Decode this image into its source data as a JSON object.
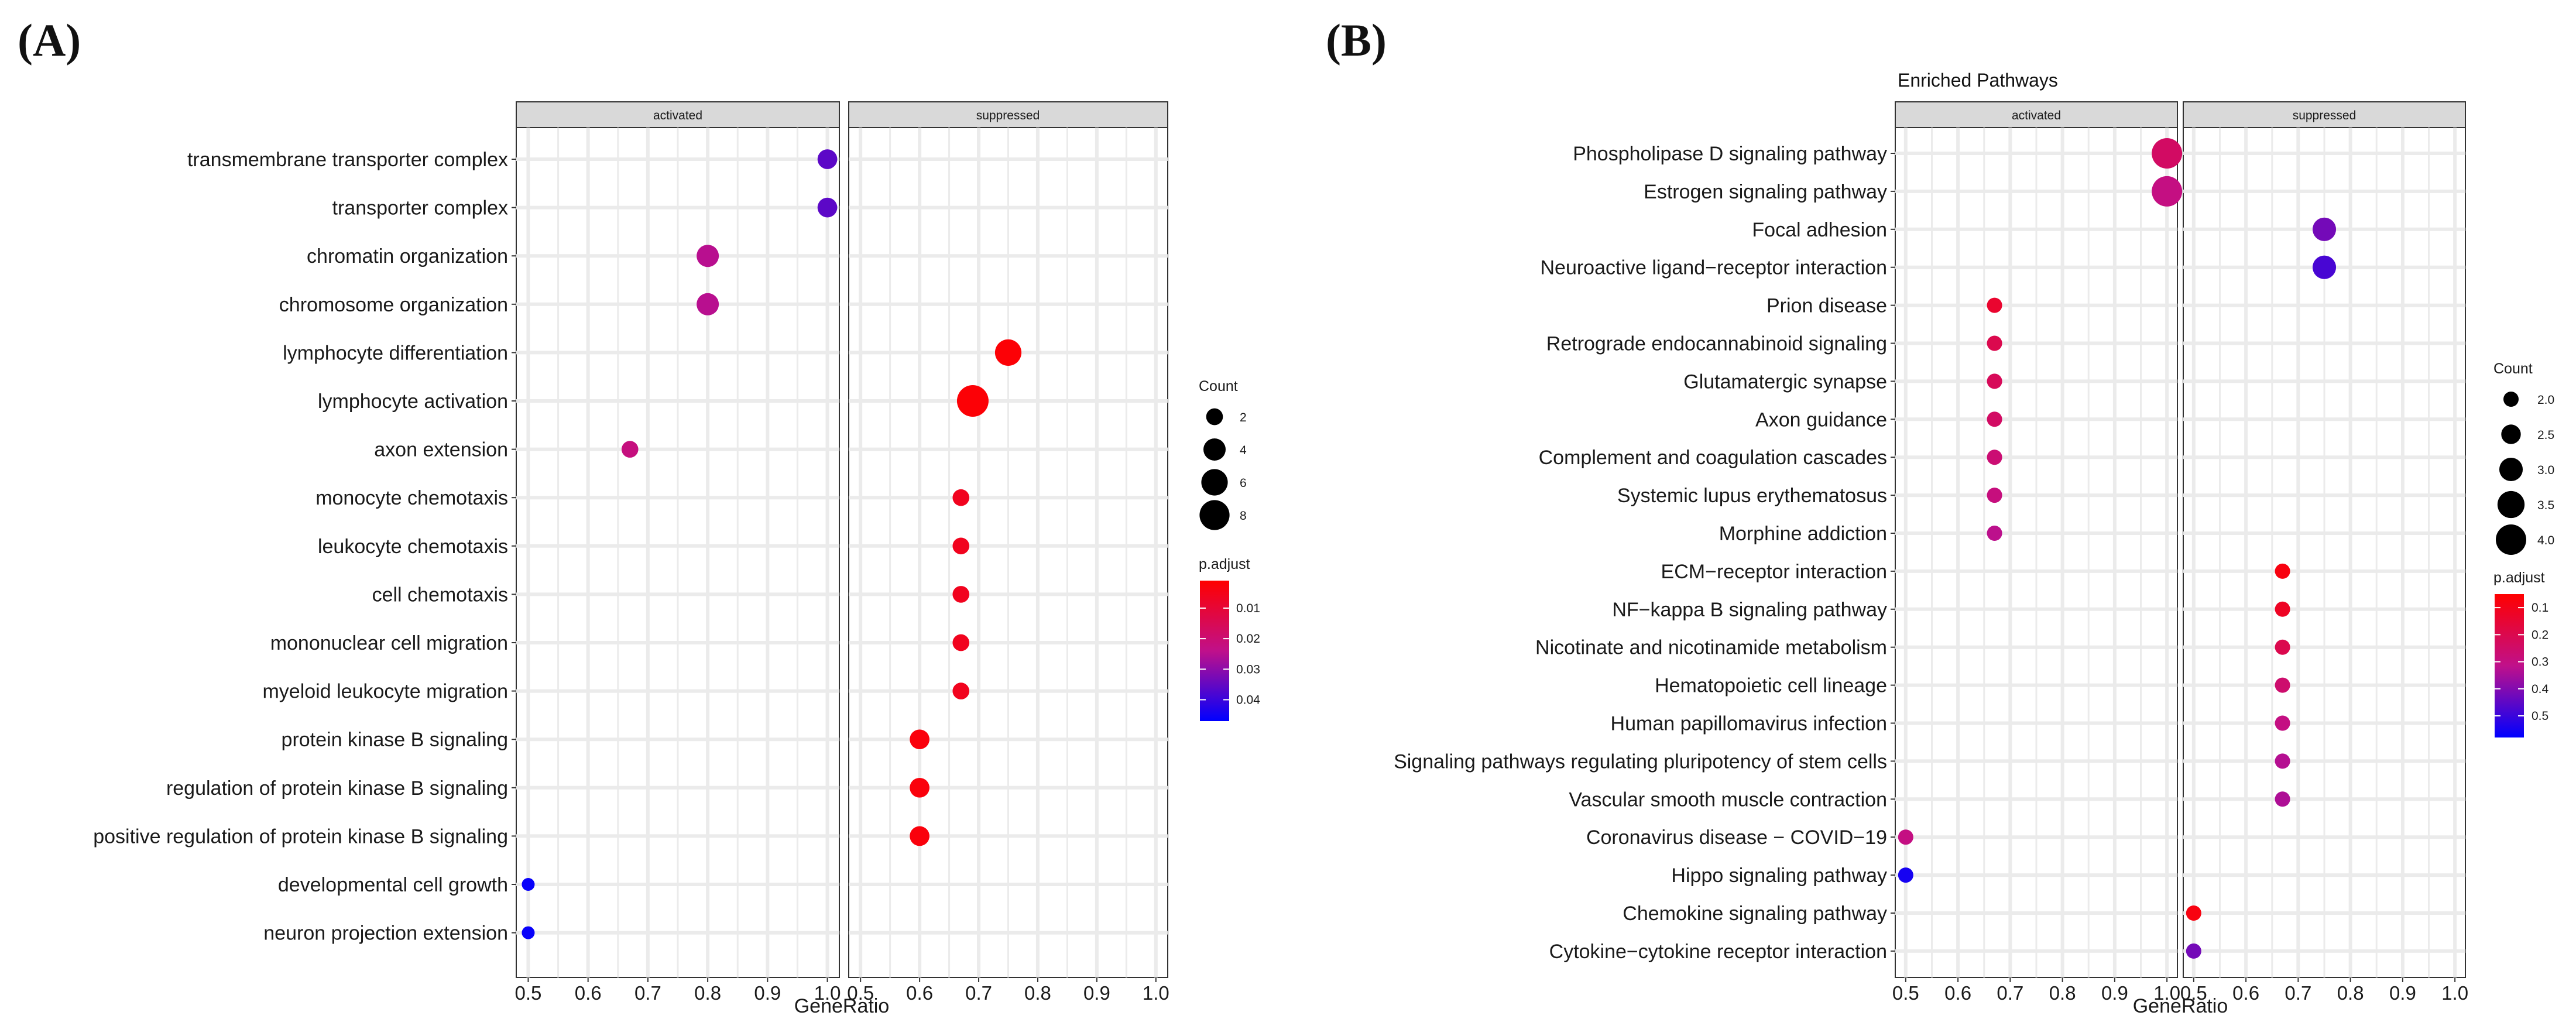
{
  "colors": {
    "low_padj": "#FF0000",
    "high_padj": "#0000FF",
    "grid": "#EBEBEB",
    "strip_fill": "#D9D9D9"
  },
  "chart_data": [
    {
      "type": "scatter",
      "panel_label": "(A)",
      "title": "",
      "xlabel": "GeneRatio",
      "ylabel": "",
      "facets": [
        "activated",
        "suppressed"
      ],
      "xlim": [
        0.48,
        1.02
      ],
      "xticks": [
        0.5,
        0.6,
        0.7,
        0.8,
        0.9,
        1.0
      ],
      "xtick_labels": [
        "0.5",
        "0.6",
        "0.7",
        "0.8",
        "0.9",
        "1.0"
      ],
      "categories": [
        "transmembrane transporter complex",
        "transporter complex",
        "chromatin organization",
        "chromosome organization",
        "lymphocyte differentiation",
        "lymphocyte activation",
        "axon extension",
        "monocyte chemotaxis",
        "leukocyte chemotaxis",
        "cell chemotaxis",
        "mononuclear cell migration",
        "myeloid leukocyte migration",
        "protein kinase B signaling",
        "regulation of protein kinase B signaling",
        "positive regulation of protein kinase B signaling",
        "developmental cell growth",
        "neuron projection extension"
      ],
      "points": [
        {
          "category": "transmembrane transporter complex",
          "facet": "activated",
          "x": 1.0,
          "count": 3,
          "p_adjust": 0.036
        },
        {
          "category": "transporter complex",
          "facet": "activated",
          "x": 1.0,
          "count": 3,
          "p_adjust": 0.036
        },
        {
          "category": "chromatin organization",
          "facet": "activated",
          "x": 0.8,
          "count": 4,
          "p_adjust": 0.025
        },
        {
          "category": "chromosome organization",
          "facet": "activated",
          "x": 0.8,
          "count": 4,
          "p_adjust": 0.025
        },
        {
          "category": "lymphocyte differentiation",
          "facet": "suppressed",
          "x": 0.75,
          "count": 6,
          "p_adjust": 0.002
        },
        {
          "category": "lymphocyte activation",
          "facet": "suppressed",
          "x": 0.69,
          "count": 9,
          "p_adjust": 0.002
        },
        {
          "category": "axon extension",
          "facet": "activated",
          "x": 0.67,
          "count": 2,
          "p_adjust": 0.022
        },
        {
          "category": "monocyte chemotaxis",
          "facet": "suppressed",
          "x": 0.67,
          "count": 2,
          "p_adjust": 0.006
        },
        {
          "category": "leukocyte chemotaxis",
          "facet": "suppressed",
          "x": 0.67,
          "count": 2,
          "p_adjust": 0.006
        },
        {
          "category": "cell chemotaxis",
          "facet": "suppressed",
          "x": 0.67,
          "count": 2,
          "p_adjust": 0.006
        },
        {
          "category": "mononuclear cell migration",
          "facet": "suppressed",
          "x": 0.67,
          "count": 2,
          "p_adjust": 0.006
        },
        {
          "category": "myeloid leukocyte migration",
          "facet": "suppressed",
          "x": 0.67,
          "count": 2,
          "p_adjust": 0.006
        },
        {
          "category": "protein kinase B signaling",
          "facet": "suppressed",
          "x": 0.6,
          "count": 3,
          "p_adjust": 0.003
        },
        {
          "category": "regulation of protein kinase B signaling",
          "facet": "suppressed",
          "x": 0.6,
          "count": 3,
          "p_adjust": 0.003
        },
        {
          "category": "positive regulation of protein kinase B signaling",
          "facet": "suppressed",
          "x": 0.6,
          "count": 3,
          "p_adjust": 0.003
        },
        {
          "category": "developmental cell growth",
          "facet": "activated",
          "x": 0.5,
          "count": 1,
          "p_adjust": 0.046
        },
        {
          "category": "neuron projection extension",
          "facet": "activated",
          "x": 0.5,
          "count": 1,
          "p_adjust": 0.046
        }
      ],
      "size_legend": {
        "title": "Count",
        "values": [
          2,
          4,
          6,
          8
        ],
        "labels": [
          "2",
          "4",
          "6",
          "8"
        ],
        "range": [
          1,
          9
        ]
      },
      "color_legend": {
        "title": "p.adjust",
        "ticks": [
          0.01,
          0.02,
          0.03,
          0.04
        ],
        "tick_labels": [
          "0.01",
          "0.02",
          "0.03",
          "0.04"
        ],
        "range": [
          0.001,
          0.047
        ]
      }
    },
    {
      "type": "scatter",
      "panel_label": "(B)",
      "title": "Enriched Pathways",
      "xlabel": "GeneRatio",
      "ylabel": "",
      "facets": [
        "activated",
        "suppressed"
      ],
      "xlim": [
        0.48,
        1.02
      ],
      "xticks": [
        0.5,
        0.6,
        0.7,
        0.8,
        0.9,
        1.0
      ],
      "xtick_labels": [
        "0.5",
        "0.6",
        "0.7",
        "0.8",
        "0.9",
        "1.0"
      ],
      "categories": [
        "Phospholipase D signaling pathway",
        "Estrogen signaling pathway",
        "Focal adhesion",
        "Neuroactive ligand−receptor interaction",
        "Prion disease",
        "Retrograde endocannabinoid signaling",
        "Glutamatergic synapse",
        "Axon guidance",
        "Complement and coagulation cascades",
        "Systemic lupus erythematosus",
        "Morphine addiction",
        "ECM−receptor interaction",
        "NF−kappa B signaling pathway",
        "Nicotinate and nicotinamide metabolism",
        "Hematopoietic cell lineage",
        "Human papillomavirus infection",
        "Signaling pathways regulating pluripotency of stem cells",
        "Vascular smooth muscle contraction",
        "Coronavirus disease − COVID−19",
        "Hippo signaling pathway",
        "Chemokine signaling pathway",
        "Cytokine−cytokine receptor interaction"
      ],
      "points": [
        {
          "category": "Phospholipase D signaling pathway",
          "facet": "activated",
          "x": 1.0,
          "count": 4,
          "p_adjust": 0.24
        },
        {
          "category": "Estrogen signaling pathway",
          "facet": "activated",
          "x": 1.0,
          "count": 4,
          "p_adjust": 0.3
        },
        {
          "category": "Focal adhesion",
          "facet": "suppressed",
          "x": 0.75,
          "count": 3,
          "p_adjust": 0.42
        },
        {
          "category": "Neuroactive ligand−receptor interaction",
          "facet": "suppressed",
          "x": 0.75,
          "count": 3,
          "p_adjust": 0.48
        },
        {
          "category": "Prion disease",
          "facet": "activated",
          "x": 0.67,
          "count": 2,
          "p_adjust": 0.14
        },
        {
          "category": "Retrograde endocannabinoid signaling",
          "facet": "activated",
          "x": 0.67,
          "count": 2,
          "p_adjust": 0.2
        },
        {
          "category": "Glutamatergic synapse",
          "facet": "activated",
          "x": 0.67,
          "count": 2,
          "p_adjust": 0.22
        },
        {
          "category": "Axon guidance",
          "facet": "activated",
          "x": 0.67,
          "count": 2,
          "p_adjust": 0.24
        },
        {
          "category": "Complement and coagulation cascades",
          "facet": "activated",
          "x": 0.67,
          "count": 2,
          "p_adjust": 0.27
        },
        {
          "category": "Systemic lupus erythematosus",
          "facet": "activated",
          "x": 0.67,
          "count": 2,
          "p_adjust": 0.29
        },
        {
          "category": "Morphine addiction",
          "facet": "activated",
          "x": 0.67,
          "count": 2,
          "p_adjust": 0.32
        },
        {
          "category": "ECM−receptor interaction",
          "facet": "suppressed",
          "x": 0.67,
          "count": 2,
          "p_adjust": 0.08
        },
        {
          "category": "NF−kappa B signaling pathway",
          "facet": "suppressed",
          "x": 0.67,
          "count": 2,
          "p_adjust": 0.12
        },
        {
          "category": "Nicotinate and nicotinamide metabolism",
          "facet": "suppressed",
          "x": 0.67,
          "count": 2,
          "p_adjust": 0.2
        },
        {
          "category": "Hematopoietic cell lineage",
          "facet": "suppressed",
          "x": 0.67,
          "count": 2,
          "p_adjust": 0.26
        },
        {
          "category": "Human papillomavirus infection",
          "facet": "suppressed",
          "x": 0.67,
          "count": 2,
          "p_adjust": 0.3
        },
        {
          "category": "Signaling pathways regulating pluripotency of stem cells",
          "facet": "suppressed",
          "x": 0.67,
          "count": 2,
          "p_adjust": 0.33
        },
        {
          "category": "Vascular smooth muscle contraction",
          "facet": "suppressed",
          "x": 0.67,
          "count": 2,
          "p_adjust": 0.34
        },
        {
          "category": "Coronavirus disease − COVID−19",
          "facet": "activated",
          "x": 0.5,
          "count": 2,
          "p_adjust": 0.3
        },
        {
          "category": "Hippo signaling pathway",
          "facet": "activated",
          "x": 0.5,
          "count": 2,
          "p_adjust": 0.55
        },
        {
          "category": "Chemokine signaling pathway",
          "facet": "suppressed",
          "x": 0.5,
          "count": 2,
          "p_adjust": 0.08
        },
        {
          "category": "Cytokine−cytokine receptor interaction",
          "facet": "suppressed",
          "x": 0.5,
          "count": 2,
          "p_adjust": 0.42
        }
      ],
      "size_legend": {
        "title": "Count",
        "values": [
          2.0,
          2.5,
          3.0,
          3.5,
          4.0
        ],
        "labels": [
          "2.0",
          "2.5",
          "3.0",
          "3.5",
          "4.0"
        ],
        "range": [
          2,
          4
        ]
      },
      "color_legend": {
        "title": "p.adjust",
        "ticks": [
          0.1,
          0.2,
          0.3,
          0.4,
          0.5
        ],
        "tick_labels": [
          "0.1",
          "0.2",
          "0.3",
          "0.4",
          "0.5"
        ],
        "range": [
          0.05,
          0.58
        ]
      }
    }
  ]
}
